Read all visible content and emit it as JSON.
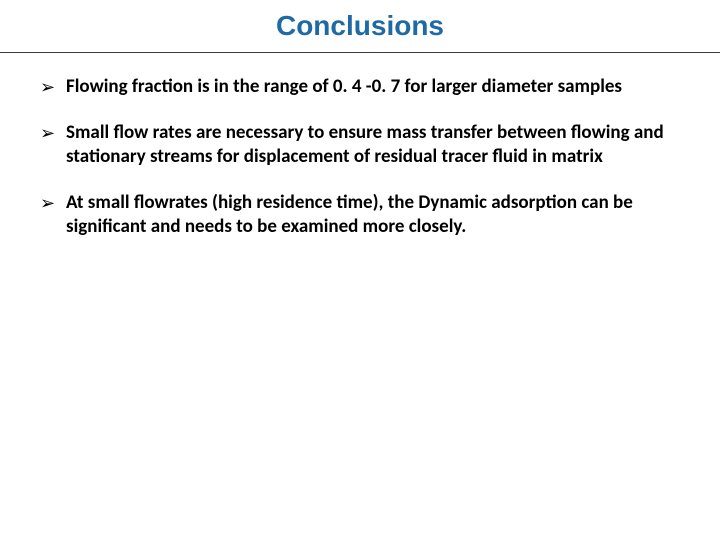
{
  "slide": {
    "title": "Conclusions",
    "title_color": "#1f6aa5",
    "title_fontsize": 28,
    "rule_color": "#3a3a3a",
    "background_color": "#ffffff",
    "bullet_glyph": "➢",
    "bullet_color": "#000000",
    "body_fontsize": 19,
    "body_fontweight": 700,
    "bullets": [
      {
        "text": "Flowing fraction is in the range of 0. 4 -0. 7 for larger diameter samples"
      },
      {
        "text": "Small flow rates are necessary to ensure mass transfer between flowing and stationary  streams for displacement of residual tracer fluid in matrix"
      },
      {
        "text": " At small flowrates (high residence time), the Dynamic adsorption can be significant and needs to be examined more closely."
      }
    ]
  }
}
